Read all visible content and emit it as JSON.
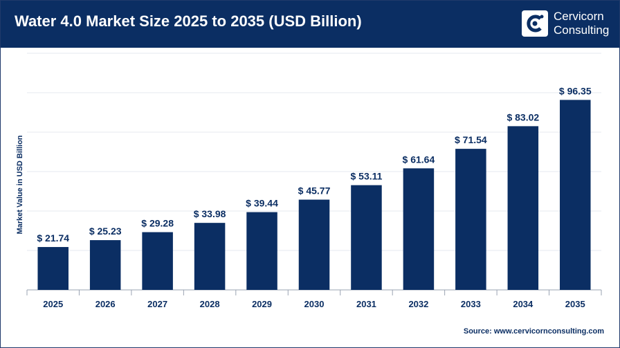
{
  "header": {
    "title": "Water 4.0 Market Size 2025 to 2035 (USD Billion)",
    "logo_line1": "Cervicorn",
    "logo_line2": "Consulting"
  },
  "footer": {
    "source": "Source: www.cervicornconsulting.com"
  },
  "colors": {
    "header_bg": "#0b2e63",
    "bar": "#0b2e63",
    "text": "#0b2e63"
  },
  "chart_data": {
    "type": "bar",
    "title": "Water 4.0 Market Size 2025 to 2035 (USD Billion)",
    "xlabel": "",
    "ylabel": "Market Value in USD Billion",
    "categories": [
      "2025",
      "2026",
      "2027",
      "2028",
      "2029",
      "2030",
      "2031",
      "2032",
      "2033",
      "2034",
      "2035"
    ],
    "values": [
      21.74,
      25.23,
      29.28,
      33.98,
      39.44,
      45.77,
      53.11,
      61.64,
      71.54,
      83.02,
      96.35
    ],
    "labels": [
      "$ 21.74",
      "$ 25.23",
      "$ 29.28",
      "$ 33.98",
      "$ 39.44",
      "$ 45.77",
      "$ 53.11",
      "$ 61.64",
      "$ 71.54",
      "$ 83.02",
      "$ 96.35"
    ],
    "ylim": [
      0,
      120
    ],
    "grid": true,
    "legend": "none"
  }
}
